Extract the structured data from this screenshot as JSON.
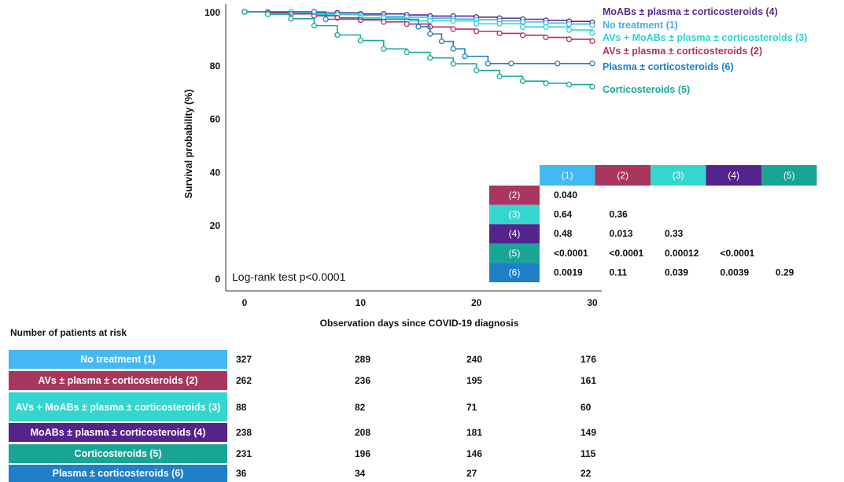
{
  "chart_data": {
    "type": "line",
    "title": "",
    "xlabel": "Observation days since COVID-19 diagnosis",
    "ylabel": "Survival probability (%)",
    "xlim": [
      0,
      30
    ],
    "ylim": [
      0,
      100
    ],
    "x_ticks": [
      "0",
      "10",
      "20",
      "30"
    ],
    "y_ticks": [
      "0",
      "20",
      "40",
      "60",
      "80",
      "100"
    ],
    "grid": false,
    "legend_position": "top-right, as labels at line ends",
    "annotation": "Log-rank test p<0.0001",
    "series": [
      {
        "name": "MoABs ± plasma ± corticosteroids (4)",
        "color": "#5b2a8e",
        "x": [
          0,
          2,
          4,
          6,
          8,
          10,
          12,
          14,
          16,
          18,
          20,
          22,
          24,
          26,
          28,
          30
        ],
        "y": [
          100,
          100,
          100,
          99.6,
          99.6,
          99.2,
          99.2,
          98.8,
          98.4,
          98.4,
          98,
          97.6,
          97.2,
          96.8,
          96.4,
          96
        ]
      },
      {
        "name": "No treatment (1)",
        "color": "#3fb0f0",
        "x": [
          0,
          2,
          4,
          6,
          8,
          10,
          12,
          14,
          16,
          18,
          20,
          22,
          24,
          26,
          28,
          30
        ],
        "y": [
          100,
          100,
          99.7,
          99.4,
          99,
          98.7,
          98.3,
          98,
          97.6,
          97.3,
          97,
          96.6,
          96.2,
          95.8,
          95.4,
          95
        ]
      },
      {
        "name": "AVs + MoABs ± plasma ± corticosteroids (3)",
        "color": "#2dd4cf",
        "x": [
          0,
          2,
          4,
          6,
          8,
          10,
          12,
          14,
          16,
          18,
          20,
          22,
          24,
          26,
          28,
          30
        ],
        "y": [
          100,
          100,
          100,
          98.9,
          98.9,
          97.7,
          97.7,
          96.6,
          96.6,
          96.6,
          95.5,
          95.5,
          94.3,
          94.3,
          93.2,
          92
        ]
      },
      {
        "name": "AVs ± plasma ± corticosteroids (2)",
        "color": "#b03060",
        "x": [
          0,
          2,
          4,
          6,
          8,
          10,
          12,
          14,
          16,
          18,
          20,
          22,
          24,
          26,
          28,
          30
        ],
        "y": [
          100,
          99.6,
          99.2,
          98.5,
          97.7,
          96.9,
          96.2,
          95.4,
          94.3,
          93.5,
          92.7,
          91.9,
          91.2,
          90.4,
          89.7,
          89
        ]
      },
      {
        "name": "Plasma ± corticosteroids (6)",
        "color": "#1f7fc8",
        "x": [
          0,
          6,
          7,
          15,
          16,
          17,
          18,
          19,
          21,
          23,
          27,
          30
        ],
        "y": [
          100,
          100,
          97.2,
          94.4,
          91.7,
          88.9,
          86.1,
          83.3,
          80.6,
          80.6,
          80.6,
          80.6
        ]
      },
      {
        "name": "Corticosteroids (5)",
        "color": "#1aa89a",
        "x": [
          0,
          2,
          4,
          6,
          8,
          10,
          12,
          14,
          16,
          18,
          20,
          22,
          24,
          26,
          28,
          30
        ],
        "y": [
          100,
          99.1,
          97.4,
          94.8,
          91.3,
          89.2,
          86.1,
          84.8,
          82.7,
          80.5,
          78,
          75.8,
          74,
          73.2,
          72.7,
          71.9
        ]
      }
    ],
    "pvalue_table": {
      "columns": [
        {
          "label": "(1)",
          "color": "#44b8f3"
        },
        {
          "label": "(2)",
          "color": "#a8365f"
        },
        {
          "label": "(3)",
          "color": "#35d6cf"
        },
        {
          "label": "(4)",
          "color": "#55238c"
        },
        {
          "label": "(5)",
          "color": "#19a595"
        }
      ],
      "rows": [
        {
          "label": "(2)",
          "color": "#a8365f",
          "values": [
            "0.040"
          ]
        },
        {
          "label": "(3)",
          "color": "#35d6cf",
          "values": [
            "0.64",
            "0.36"
          ]
        },
        {
          "label": "(4)",
          "color": "#55238c",
          "values": [
            "0.48",
            "0.013",
            "0.33"
          ]
        },
        {
          "label": "(5)",
          "color": "#19a595",
          "values": [
            "<0.0001",
            "<0.0001",
            "0.00012",
            "<0.0001"
          ]
        },
        {
          "label": "(6)",
          "color": "#1f7fc8",
          "values": [
            "0.0019",
            "0.11",
            "0.039",
            "0.0039",
            "0.29"
          ]
        }
      ]
    }
  },
  "risk_table": {
    "title": "Number of patients at risk",
    "rows": [
      {
        "label": "No treatment (1)",
        "color": "#44b8f3",
        "values": [
          "327",
          "289",
          "240",
          "176"
        ]
      },
      {
        "label": "AVs ± plasma ± corticosteroids (2)",
        "color": "#a8365f",
        "values": [
          "262",
          "236",
          "195",
          "161"
        ]
      },
      {
        "label": "AVs + MoABs ± plasma ± corticosteroids (3)",
        "color": "#35d6cf",
        "values": [
          "88",
          "82",
          "71",
          "60"
        ]
      },
      {
        "label": "MoABs ± plasma ± corticosteroids (4)",
        "color": "#55238c",
        "values": [
          "238",
          "208",
          "181",
          "149"
        ]
      },
      {
        "label": "Corticosteroids (5)",
        "color": "#19a595",
        "values": [
          "231",
          "196",
          "146",
          "115"
        ]
      },
      {
        "label": "Plasma ± corticosteroids (6)",
        "color": "#1f7fc8",
        "values": [
          "36",
          "34",
          "27",
          "22"
        ]
      }
    ]
  }
}
